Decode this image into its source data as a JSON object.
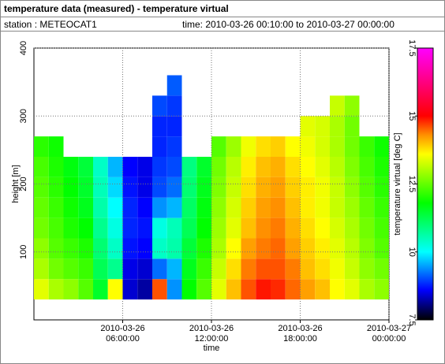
{
  "header": {
    "title": "temperature data (measured) - temperature virtual",
    "station": "station : METEOCAT1",
    "period": "time: 2010-03-26 00:10:00 to 2010-03-27 00:00:00"
  },
  "chart_data": {
    "type": "heatmap",
    "xlabel": "time",
    "ylabel": "height [m]",
    "colorbar_label": "temperature virtual [deg C]",
    "xlim": [
      "2010-03-26 00:00:00",
      "2010-03-27 00:00:00"
    ],
    "xticks": [
      {
        "value": "2010-03-26 06:00:00",
        "label": "2010-03-26 06:00:00"
      },
      {
        "value": "2010-03-26 12:00:00",
        "label": "2010-03-26 12:00:00"
      },
      {
        "value": "2010-03-26 18:00:00",
        "label": "2010-03-26 18:00:00"
      },
      {
        "value": "2010-03-27 00:00:00",
        "label": "2010-03-27 00:00:00"
      }
    ],
    "ylim": [
      0,
      400
    ],
    "yticks": [
      100,
      200,
      300,
      400
    ],
    "grid": true,
    "clim": [
      7.5,
      17.5
    ],
    "cticks": [
      7.5,
      10,
      12.5,
      15,
      17.5
    ],
    "colormap": [
      {
        "value": 7.5,
        "color": "#000000"
      },
      {
        "value": 8.6,
        "color": "#0000ff"
      },
      {
        "value": 10,
        "color": "#00ffff"
      },
      {
        "value": 11.8,
        "color": "#00ff00"
      },
      {
        "value": 13.6,
        "color": "#ffff00"
      },
      {
        "value": 14.3,
        "color": "#ff9000"
      },
      {
        "value": 15,
        "color": "#ff0000"
      },
      {
        "value": 17.5,
        "color": "#ff00ff"
      }
    ],
    "x": [
      "2010-03-26 00:00:00",
      "2010-03-26 01:00:00",
      "2010-03-26 02:00:00",
      "2010-03-26 03:00:00",
      "2010-03-26 04:00:00",
      "2010-03-26 05:00:00",
      "2010-03-26 06:00:00",
      "2010-03-26 07:00:00",
      "2010-03-26 08:00:00",
      "2010-03-26 09:00:00",
      "2010-03-26 10:00:00",
      "2010-03-26 11:00:00",
      "2010-03-26 12:00:00",
      "2010-03-26 13:00:00",
      "2010-03-26 14:00:00",
      "2010-03-26 15:00:00",
      "2010-03-26 16:00:00",
      "2010-03-26 17:00:00",
      "2010-03-26 18:00:00",
      "2010-03-26 19:00:00",
      "2010-03-26 20:00:00",
      "2010-03-26 21:00:00",
      "2010-03-26 22:00:00",
      "2010-03-26 23:00:00"
    ],
    "y": [
      30,
      60,
      90,
      120,
      150,
      180,
      210,
      240,
      270,
      300,
      330
    ],
    "values": [
      [
        13.4,
        13.0,
        12.8,
        12.4,
        11.5,
        13.6,
        8.4,
        8.2,
        14.6,
        9.4,
        11.8,
        12.4,
        13.4,
        14.0,
        14.6,
        14.9,
        14.8,
        14.5,
        14.2,
        14.0,
        13.6,
        13.4,
        13.0,
        12.8
      ],
      [
        13.0,
        12.6,
        12.4,
        12.2,
        11.2,
        10.8,
        8.5,
        8.4,
        9.2,
        9.6,
        11.6,
        12.2,
        13.2,
        13.8,
        14.4,
        14.6,
        14.6,
        14.4,
        14.0,
        13.8,
        13.5,
        13.2,
        12.8,
        12.6
      ],
      [
        12.8,
        12.4,
        12.2,
        12.0,
        11.0,
        10.4,
        8.7,
        8.6,
        10.4,
        10.6,
        11.4,
        12.0,
        13.0,
        13.6,
        14.2,
        14.4,
        14.5,
        14.2,
        13.9,
        13.7,
        13.4,
        13.1,
        12.7,
        12.4
      ],
      [
        12.6,
        12.3,
        12.0,
        11.8,
        10.8,
        10.2,
        8.8,
        8.7,
        10.2,
        10.5,
        11.2,
        11.8,
        12.9,
        13.4,
        14.0,
        14.3,
        14.4,
        14.1,
        13.8,
        13.6,
        13.3,
        13.0,
        12.6,
        12.3
      ],
      [
        12.5,
        12.2,
        11.9,
        11.6,
        10.6,
        10.0,
        8.8,
        8.6,
        9.4,
        9.6,
        11.1,
        11.7,
        12.8,
        13.3,
        13.9,
        14.2,
        14.3,
        14.0,
        13.7,
        13.5,
        13.2,
        12.9,
        12.5,
        12.2
      ],
      [
        12.4,
        12.1,
        11.8,
        11.5,
        10.5,
        9.8,
        8.7,
        8.5,
        9.0,
        9.2,
        11.0,
        11.6,
        12.7,
        13.2,
        13.8,
        14.1,
        14.2,
        13.9,
        13.7,
        13.5,
        13.2,
        12.8,
        12.4,
        12.1
      ],
      [
        12.3,
        12.0,
        11.7,
        11.4,
        10.4,
        9.6,
        8.6,
        8.5,
        8.9,
        9.0,
        10.9,
        11.5,
        12.6,
        13.1,
        13.7,
        14.0,
        14.1,
        13.8,
        13.6,
        13.4,
        13.1,
        12.7,
        12.3,
        12.0
      ],
      [
        12.1,
        11.9,
        null,
        null,
        null,
        null,
        null,
        null,
        8.8,
        8.9,
        null,
        null,
        12.4,
        12.9,
        13.5,
        13.8,
        13.9,
        13.6,
        13.5,
        13.3,
        13.0,
        12.6,
        12.2,
        11.9
      ],
      [
        null,
        null,
        null,
        null,
        null,
        null,
        null,
        null,
        8.8,
        8.8,
        null,
        null,
        null,
        null,
        null,
        null,
        null,
        null,
        13.4,
        13.3,
        13.0,
        12.6,
        null,
        null
      ],
      [
        null,
        null,
        null,
        null,
        null,
        null,
        null,
        null,
        9.0,
        8.9,
        null,
        null,
        null,
        null,
        null,
        null,
        null,
        null,
        null,
        null,
        13.2,
        12.8,
        null,
        null
      ],
      [
        null,
        null,
        null,
        null,
        null,
        null,
        null,
        null,
        null,
        9.1,
        null,
        null,
        null,
        null,
        null,
        null,
        null,
        null,
        null,
        null,
        null,
        null,
        null,
        null
      ]
    ]
  }
}
